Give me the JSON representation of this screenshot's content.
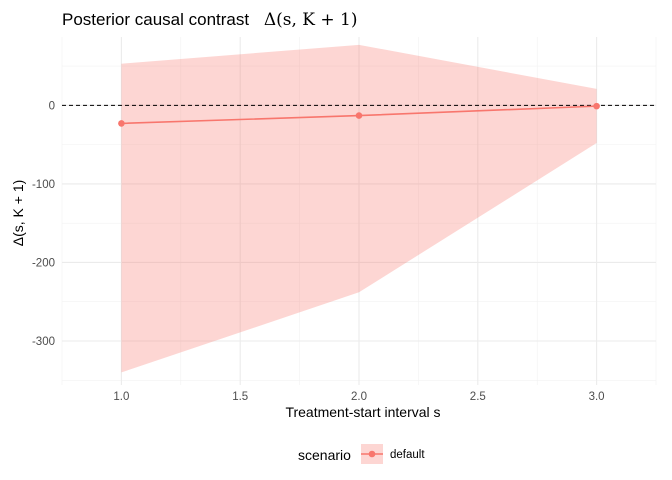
{
  "chart_data": {
    "type": "line",
    "title_prefix": "Posterior causal contrast",
    "title_formula": "Δ(s, K + 1)",
    "xlabel": "Treatment-start interval s",
    "ylabel": "Δ(s, K + 1)",
    "xlim": [
      0.75,
      3.25
    ],
    "ylim": [
      -356,
      87
    ],
    "x_ticks": [
      1.0,
      1.5,
      2.0,
      2.5,
      3.0
    ],
    "x_tick_labels": [
      "1.0",
      "1.5",
      "2.0",
      "2.5",
      "3.0"
    ],
    "y_ticks": [
      -300,
      -200,
      -100,
      0
    ],
    "y_tick_labels": [
      "-300",
      "-200",
      "-100",
      "0"
    ],
    "reference_line": {
      "y": 0,
      "style": "dashed"
    },
    "grid": true,
    "legend": {
      "title": "scenario",
      "position": "bottom"
    },
    "series": [
      {
        "name": "default",
        "color": "#F8766D",
        "x": [
          1.0,
          2.0,
          3.0
        ],
        "y": [
          -23,
          -13,
          -1
        ],
        "lower": [
          -340,
          -238,
          -48
        ],
        "upper": [
          53,
          77,
          21
        ]
      }
    ]
  }
}
